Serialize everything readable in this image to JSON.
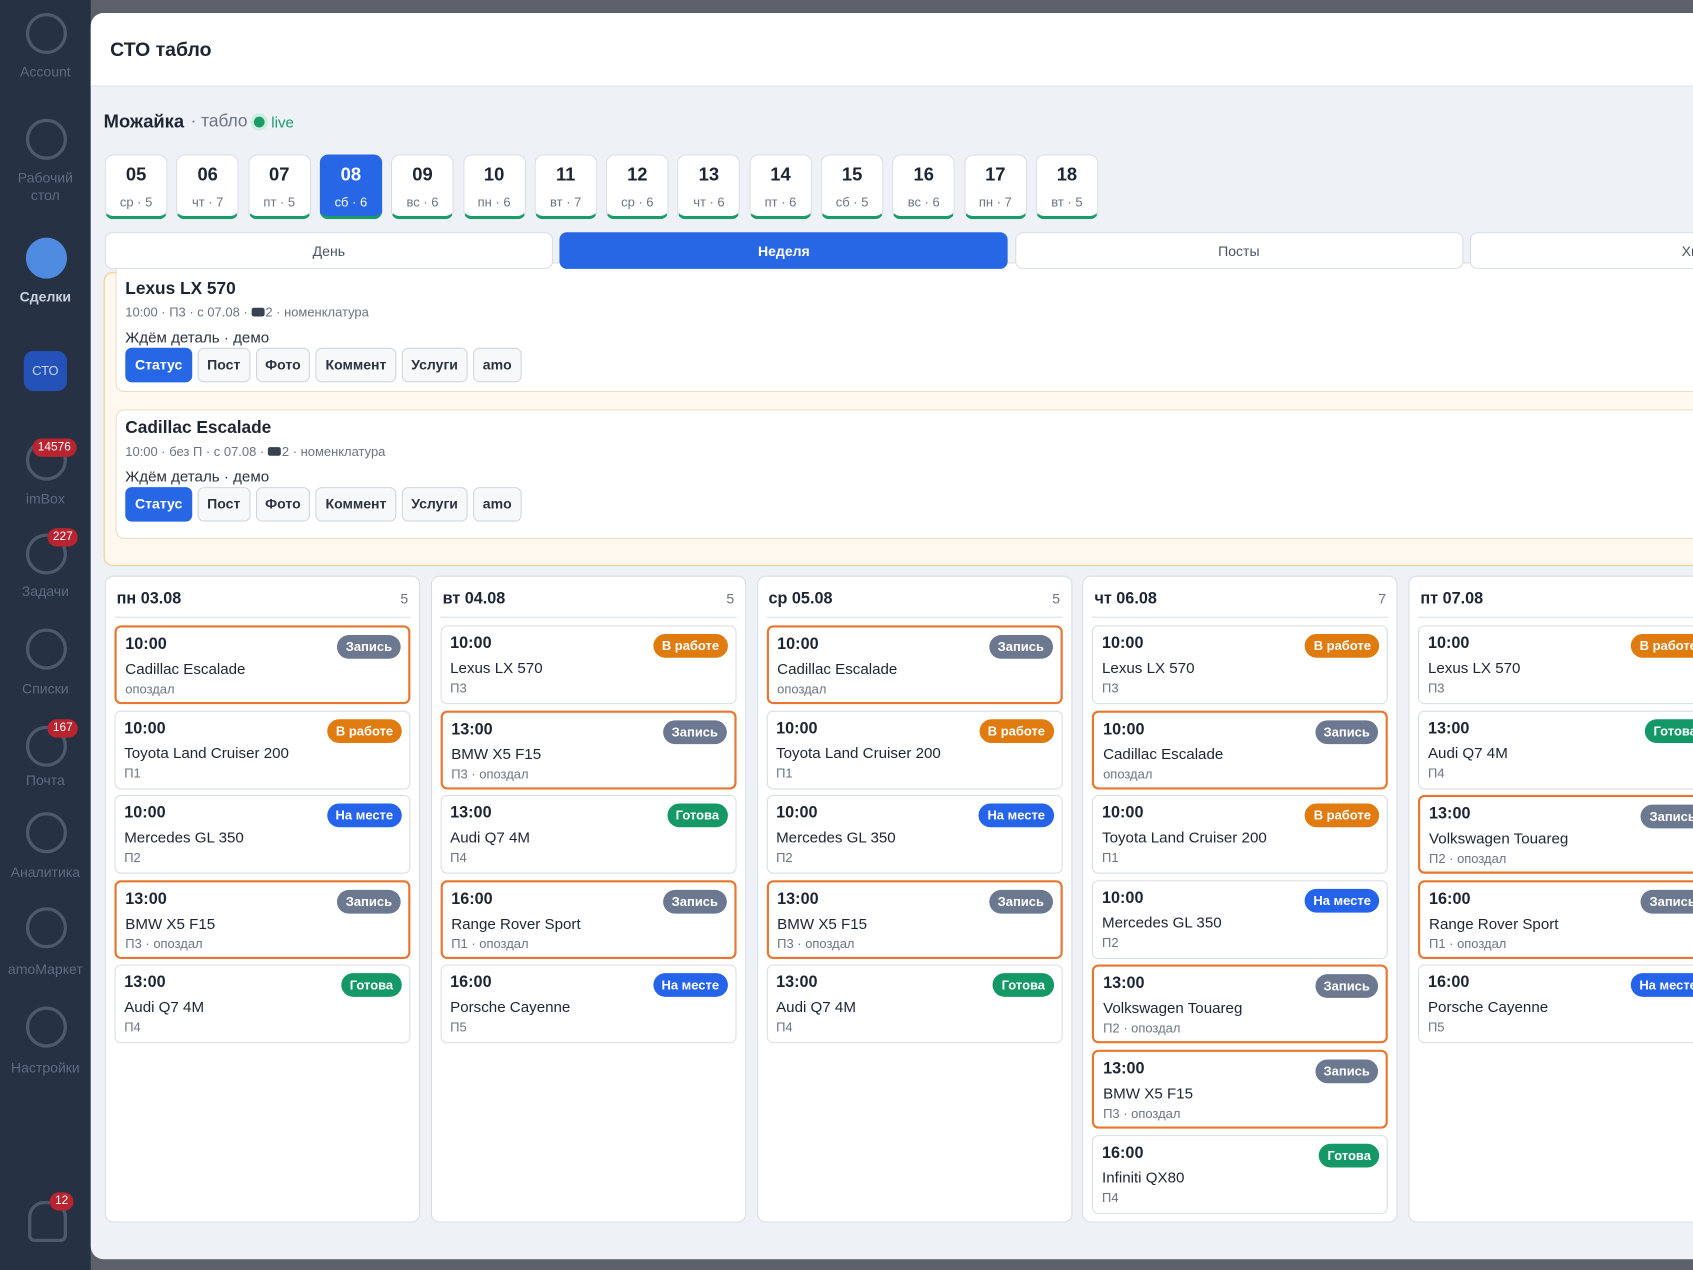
{
  "sidebar": {
    "items": [
      {
        "label": "Account"
      },
      {
        "label": "Рабочий стол"
      },
      {
        "label": "Сделки"
      },
      {
        "label": "СТО"
      },
      {
        "label": "imBox",
        "badge": "14576"
      },
      {
        "label": "Задачи",
        "badge": "227"
      },
      {
        "label": "Списки"
      },
      {
        "label": "Почта",
        "badge": "167"
      },
      {
        "label": "Аналитика"
      },
      {
        "label": "amoМаркет"
      },
      {
        "label": "Настройки"
      }
    ],
    "bell_badge": "12"
  },
  "modal": {
    "title": "СТО табло"
  },
  "header": {
    "location": "Можайка",
    "subtitle": "· табло",
    "live": "live"
  },
  "dates": [
    {
      "day": "05",
      "sub": "ср · 5"
    },
    {
      "day": "06",
      "sub": "чт · 7"
    },
    {
      "day": "07",
      "sub": "пт · 5"
    },
    {
      "day": "08",
      "sub": "сб · 6",
      "active": true
    },
    {
      "day": "09",
      "sub": "вс · 6"
    },
    {
      "day": "10",
      "sub": "пн · 6"
    },
    {
      "day": "11",
      "sub": "вт · 7"
    },
    {
      "day": "12",
      "sub": "ср · 6"
    },
    {
      "day": "13",
      "sub": "чт · 6"
    },
    {
      "day": "14",
      "sub": "пт · 6"
    },
    {
      "day": "15",
      "sub": "сб · 5"
    },
    {
      "day": "16",
      "sub": "вс · 6"
    },
    {
      "day": "17",
      "sub": "пн · 7"
    },
    {
      "day": "18",
      "sub": "вт · 5"
    }
  ],
  "tabs": [
    {
      "label": "День"
    },
    {
      "label": "Неделя",
      "active": true
    },
    {
      "label": "Посты"
    },
    {
      "label": "Хво"
    }
  ],
  "alerts": [
    {
      "title": "Lexus LX 570",
      "meta": "10:00 · П3 · с 07.08 · ",
      "meta2": "2 · номенклатура",
      "note": "Ждём деталь · демо",
      "buttons": [
        "Статус",
        "Пост",
        "Фото",
        "Коммент",
        "Услуги",
        "amo"
      ]
    },
    {
      "title": "Cadillac Escalade",
      "meta": "10:00 · без П · с 07.08 · ",
      "meta2": "2 · номенклатура",
      "note": "Ждём деталь · демо",
      "buttons": [
        "Статус",
        "Пост",
        "Фото",
        "Коммент",
        "Услуги",
        "amo"
      ]
    }
  ],
  "columns": [
    {
      "day": "пн 03.08",
      "count": "5",
      "cards": [
        {
          "time": "10:00",
          "status": "Запись",
          "color": "#6b7890",
          "car": "Cadillac Escalade",
          "meta": "опоздал"
        },
        {
          "time": "10:00",
          "status": "В работе",
          "color": "#e07b10",
          "car": "Toyota Land Cruiser 200",
          "meta": "П1"
        },
        {
          "time": "10:00",
          "status": "На месте",
          "color": "#2563eb",
          "car": "Mercedes GL 350",
          "meta": "П2"
        },
        {
          "time": "13:00",
          "status": "Запись",
          "color": "#6b7890",
          "car": "BMW X5 F15",
          "meta": "П3 · опоздал"
        },
        {
          "time": "13:00",
          "status": "Готова",
          "color": "#149866",
          "car": "Audi Q7 4M",
          "meta": "П4"
        }
      ]
    },
    {
      "day": "вт 04.08",
      "count": "5",
      "cards": [
        {
          "time": "10:00",
          "status": "В работе",
          "color": "#e07b10",
          "car": "Lexus LX 570",
          "meta": "П3"
        },
        {
          "time": "13:00",
          "status": "Запись",
          "color": "#6b7890",
          "car": "BMW X5 F15",
          "meta": "П3 · опоздал"
        },
        {
          "time": "13:00",
          "status": "Готова",
          "color": "#149866",
          "car": "Audi Q7 4M",
          "meta": "П4"
        },
        {
          "time": "16:00",
          "status": "Запись",
          "color": "#6b7890",
          "car": "Range Rover Sport",
          "meta": "П1 · опоздал"
        },
        {
          "time": "16:00",
          "status": "На месте",
          "color": "#2563eb",
          "car": "Porsche Cayenne",
          "meta": "П5"
        }
      ]
    },
    {
      "day": "ср 05.08",
      "count": "5",
      "cards": [
        {
          "time": "10:00",
          "status": "Запись",
          "color": "#6b7890",
          "car": "Cadillac Escalade",
          "meta": "опоздал"
        },
        {
          "time": "10:00",
          "status": "В работе",
          "color": "#e07b10",
          "car": "Toyota Land Cruiser 200",
          "meta": "П1"
        },
        {
          "time": "10:00",
          "status": "На месте",
          "color": "#2563eb",
          "car": "Mercedes GL 350",
          "meta": "П2"
        },
        {
          "time": "13:00",
          "status": "Запись",
          "color": "#6b7890",
          "car": "BMW X5 F15",
          "meta": "П3 · опоздал"
        },
        {
          "time": "13:00",
          "status": "Готова",
          "color": "#149866",
          "car": "Audi Q7 4M",
          "meta": "П4"
        }
      ]
    },
    {
      "day": "чт 06.08",
      "count": "7",
      "cards": [
        {
          "time": "10:00",
          "status": "В работе",
          "color": "#e07b10",
          "car": "Lexus LX 570",
          "meta": "П3"
        },
        {
          "time": "10:00",
          "status": "Запись",
          "color": "#6b7890",
          "car": "Cadillac Escalade",
          "meta": "опоздал"
        },
        {
          "time": "10:00",
          "status": "В работе",
          "color": "#e07b10",
          "car": "Toyota Land Cruiser 200",
          "meta": "П1"
        },
        {
          "time": "10:00",
          "status": "На месте",
          "color": "#2563eb",
          "car": "Mercedes GL 350",
          "meta": "П2"
        },
        {
          "time": "13:00",
          "status": "Запись",
          "color": "#6b7890",
          "car": "Volkswagen Touareg",
          "meta": "П2 · опоздал"
        },
        {
          "time": "13:00",
          "status": "Запись",
          "color": "#6b7890",
          "car": "BMW X5 F15",
          "meta": "П3 · опоздал"
        },
        {
          "time": "16:00",
          "status": "Готова",
          "color": "#149866",
          "car": "Infiniti QX80",
          "meta": "П4"
        }
      ]
    },
    {
      "day": "пт 07.08",
      "cards": [
        {
          "time": "10:00",
          "status": "В работе",
          "color": "#e07b10",
          "car": "Lexus LX 570",
          "meta": "П3"
        },
        {
          "time": "13:00",
          "status": "Готова",
          "color": "#149866",
          "car": "Audi Q7 4M",
          "meta": "П4"
        },
        {
          "time": "13:00",
          "status": "Запись",
          "color": "#6b7890",
          "car": "Volkswagen Touareg",
          "meta": "П2 · опоздал"
        },
        {
          "time": "16:00",
          "status": "Запись",
          "color": "#6b7890",
          "car": "Range Rover Sport",
          "meta": "П1 · опоздал"
        },
        {
          "time": "16:00",
          "status": "На месте",
          "color": "#2563eb",
          "car": "Porsche Cayenne",
          "meta": "П5"
        }
      ]
    }
  ]
}
